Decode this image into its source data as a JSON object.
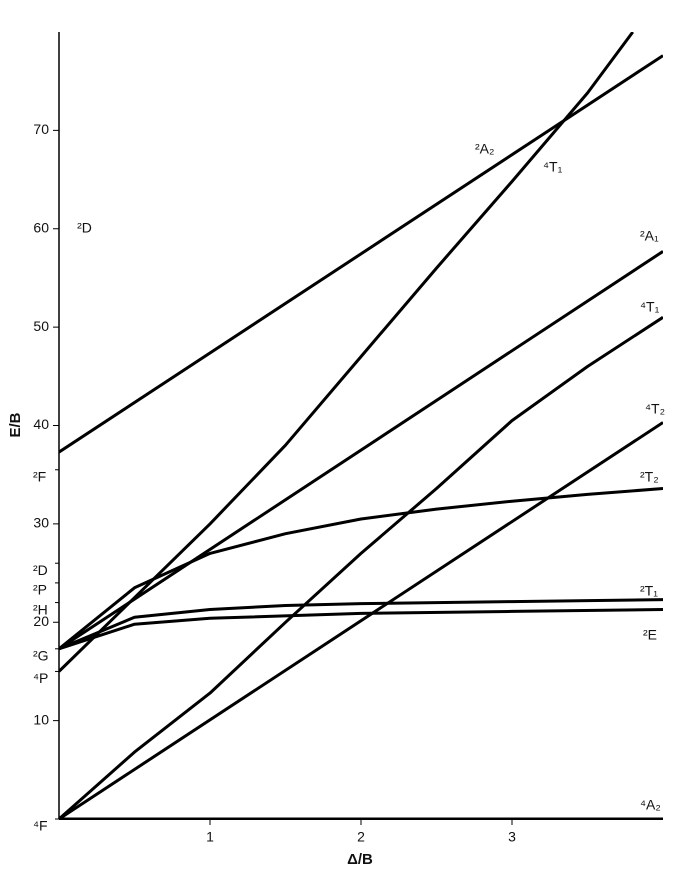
{
  "chart_data": {
    "type": "line",
    "xlabel": "Δ/B",
    "ylabel": "E/B",
    "xlim": [
      0,
      4
    ],
    "ylim": [
      0,
      80
    ],
    "xticks": [
      1,
      2,
      3
    ],
    "yticks": [
      10,
      20,
      30,
      40,
      50,
      60,
      70
    ],
    "grid": false,
    "term_ticks": [
      {
        "value": 0,
        "label": "⁴F"
      },
      {
        "value": 15,
        "label": "⁴P"
      },
      {
        "value": 17.3,
        "label": "²G"
      },
      {
        "value": 22,
        "label": "²H"
      },
      {
        "value": 24,
        "label": "²P"
      },
      {
        "value": 26,
        "label": "²D"
      },
      {
        "value": 35.5,
        "label": "²F"
      }
    ],
    "annotations": [
      {
        "text": "²D",
        "x": 0.1,
        "y": 60
      }
    ],
    "series": [
      {
        "name": "⁴A₂",
        "color": "#000000",
        "x": [
          0,
          4
        ],
        "values": [
          0,
          0
        ]
      },
      {
        "name": "⁴T₂",
        "color": "#000000",
        "x": [
          0,
          4
        ],
        "values": [
          0,
          40.3
        ]
      },
      {
        "name": "⁴T₁",
        "color": "#000000",
        "x": [
          0,
          0.5,
          1,
          1.5,
          2,
          2.5,
          3,
          3.5,
          4
        ],
        "values": [
          0,
          6.8,
          12.8,
          20,
          27,
          33.6,
          40.5,
          46,
          51
        ]
      },
      {
        "name": "⁴T₁",
        "color": "#000000",
        "x": [
          0,
          0.5,
          1,
          1.5,
          2,
          2.5,
          3,
          3.5,
          3.8
        ],
        "values": [
          15,
          22.5,
          30,
          38,
          47,
          56,
          64.8,
          73.8,
          80
        ]
      },
      {
        "name": "²A₂",
        "color": "#000000",
        "x": [
          0,
          4
        ],
        "values": [
          37.3,
          77.6
        ]
      },
      {
        "name": "²A₁",
        "color": "#000000",
        "x": [
          0,
          4
        ],
        "values": [
          17.3,
          57.7
        ]
      },
      {
        "name": "²T₂",
        "color": "#000000",
        "x": [
          0,
          0.5,
          1,
          1.5,
          2,
          2.5,
          3,
          3.5,
          4
        ],
        "values": [
          17.3,
          23.5,
          27,
          29,
          30.5,
          31.5,
          32.3,
          33,
          33.6
        ]
      },
      {
        "name": "²T₁",
        "color": "#000000",
        "x": [
          0,
          0.5,
          1,
          1.5,
          2,
          3,
          4
        ],
        "values": [
          17.3,
          20.5,
          21.3,
          21.7,
          21.9,
          22.1,
          22.3
        ]
      },
      {
        "name": "²E",
        "color": "#000000",
        "x": [
          0,
          0.5,
          1,
          2,
          3,
          4
        ],
        "values": [
          17.3,
          19.8,
          20.4,
          20.9,
          21.1,
          21.3
        ]
      }
    ]
  }
}
